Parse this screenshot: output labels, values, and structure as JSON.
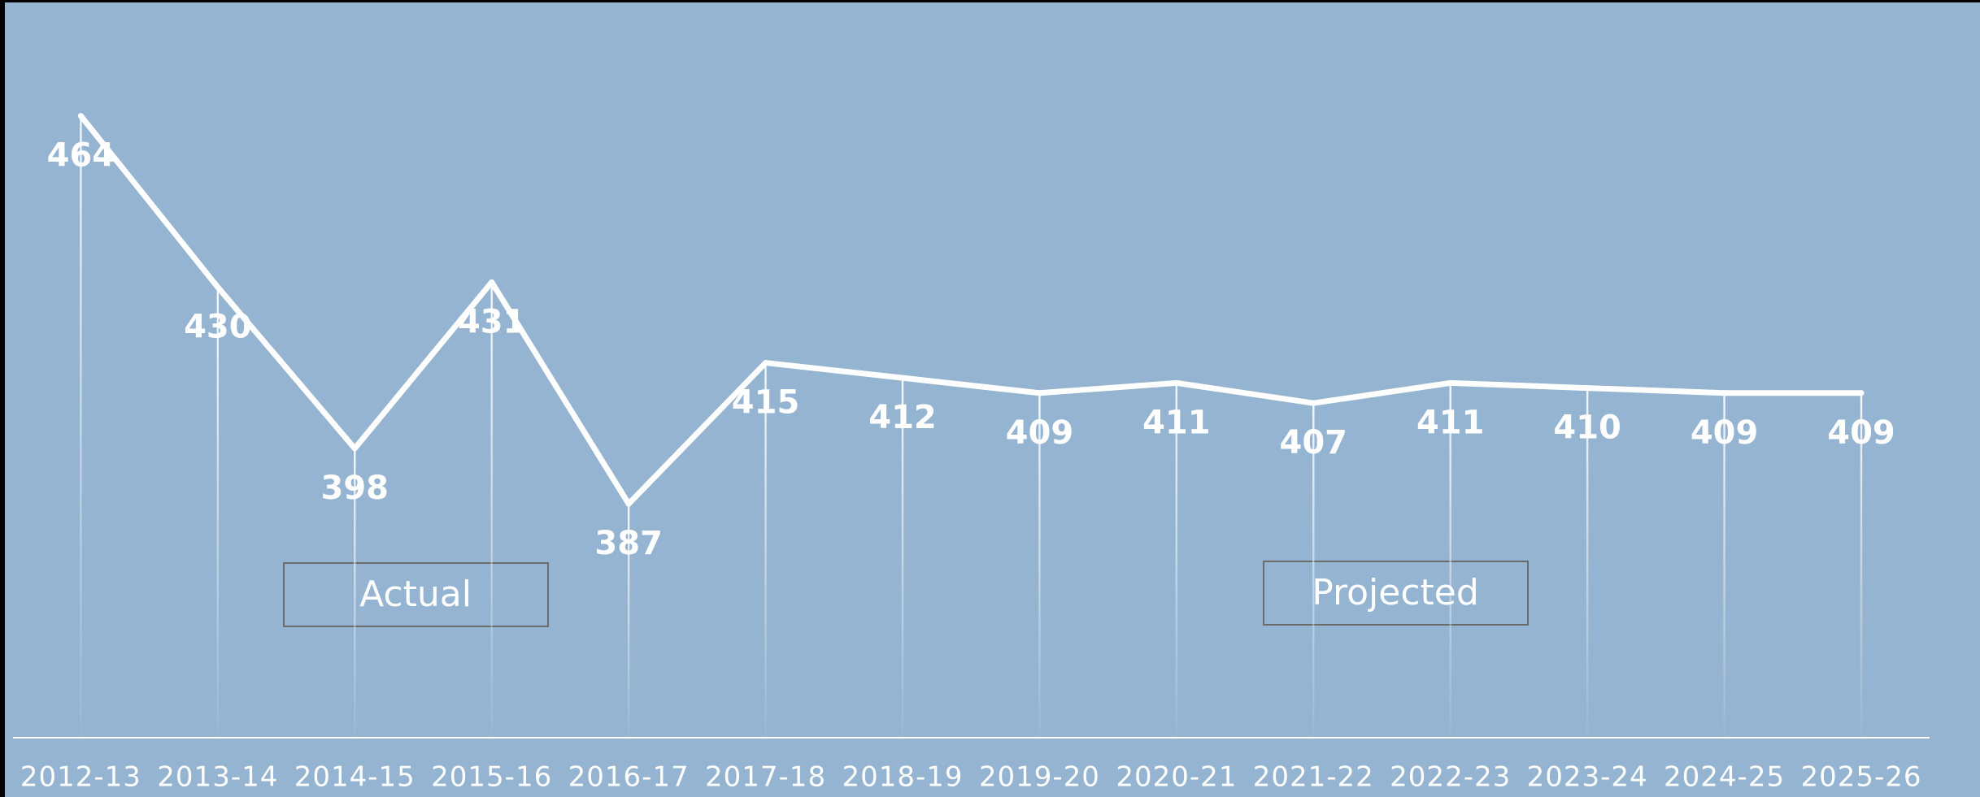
{
  "chart_data": {
    "type": "line",
    "categories": [
      "2012-13",
      "2013-14",
      "2014-15",
      "2015-16",
      "2016-17",
      "2017-18",
      "2018-19",
      "2019-20",
      "2020-21",
      "2021-22",
      "2022-23",
      "2023-24",
      "2024-25",
      "2025-26"
    ],
    "values": [
      464,
      430,
      398,
      431,
      387,
      415,
      412,
      409,
      411,
      407,
      411,
      410,
      409,
      409
    ],
    "color": "#ffffff",
    "ylim": [
      340.6,
      487
    ],
    "annotations": [
      "Actual",
      "Projected"
    ]
  }
}
